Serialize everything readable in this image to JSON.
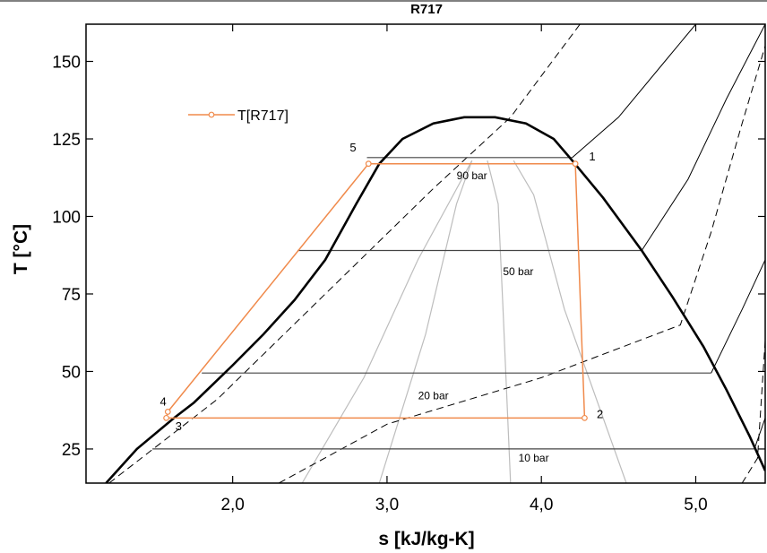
{
  "chart_data": {
    "type": "line",
    "title": "R717",
    "xlabel": "s [kJ/kg-K]",
    "ylabel": "T [°C]",
    "xlim": [
      1.05,
      5.45
    ],
    "ylim": [
      14,
      162
    ],
    "x_ticks": [
      2.0,
      3.0,
      4.0,
      5.0
    ],
    "x_tick_labels": [
      "2,0",
      "3,0",
      "4,0",
      "5,0"
    ],
    "y_ticks": [
      25,
      50,
      75,
      100,
      125,
      150
    ],
    "y_tick_labels": [
      "25",
      "50",
      "75",
      "100",
      "125",
      "150"
    ],
    "legend": {
      "position": "upper-left",
      "entries": [
        "T[R717]"
      ]
    },
    "colors": {
      "cycle": "#f08a4b",
      "isobar": "#000000",
      "quality": "#bdbdbd",
      "dome": "#000000"
    },
    "saturation_dome": [
      [
        1.18,
        14
      ],
      [
        1.38,
        25
      ],
      [
        1.62,
        35
      ],
      [
        1.75,
        40
      ],
      [
        2.0,
        52
      ],
      [
        2.2,
        62
      ],
      [
        2.4,
        73
      ],
      [
        2.6,
        86
      ],
      [
        2.8,
        104
      ],
      [
        2.95,
        117
      ],
      [
        3.1,
        125
      ],
      [
        3.3,
        130
      ],
      [
        3.5,
        132
      ],
      [
        3.7,
        132
      ],
      [
        3.9,
        130
      ],
      [
        4.08,
        125
      ],
      [
        4.2,
        118
      ],
      [
        4.4,
        106
      ],
      [
        4.65,
        89
      ],
      [
        4.85,
        74
      ],
      [
        5.05,
        58
      ],
      [
        5.2,
        44
      ],
      [
        5.35,
        29
      ],
      [
        5.45,
        18
      ]
    ],
    "isobars": [
      {
        "label": "10 bar",
        "label_pos": [
          3.95,
          21
        ],
        "points": [
          [
            1.48,
            25
          ],
          [
            5.38,
            25
          ],
          [
            5.45,
            35
          ]
        ]
      },
      {
        "label": "20 bar",
        "label_pos": [
          3.3,
          41
        ],
        "points": [
          [
            1.8,
            49.5
          ],
          [
            5.1,
            49.5
          ],
          [
            5.3,
            70
          ],
          [
            5.45,
            86
          ]
        ]
      },
      {
        "label": "50 bar",
        "label_pos": [
          3.85,
          81
        ],
        "points": [
          [
            2.42,
            89
          ],
          [
            4.65,
            89
          ],
          [
            4.95,
            112
          ],
          [
            5.2,
            138
          ],
          [
            5.45,
            162
          ]
        ]
      },
      {
        "label": "90 bar",
        "label_pos": [
          3.55,
          112
        ],
        "points": [
          [
            2.87,
            119
          ],
          [
            4.2,
            119
          ],
          [
            4.5,
            132
          ],
          [
            4.8,
            150
          ],
          [
            5.0,
            162
          ]
        ]
      }
    ],
    "isochores": [
      [
        [
          1.2,
          14
        ],
        [
          1.9,
          41
        ],
        [
          2.6,
          75
        ],
        [
          3.3,
          109
        ],
        [
          3.8,
          132
        ],
        [
          4.1,
          152
        ],
        [
          4.25,
          162
        ]
      ],
      [
        [
          2.3,
          14
        ],
        [
          3.0,
          33
        ],
        [
          4.0,
          48
        ],
        [
          4.9,
          65
        ],
        [
          5.1,
          95
        ],
        [
          5.3,
          130
        ],
        [
          5.45,
          155
        ]
      ],
      [
        [
          5.3,
          14
        ],
        [
          5.4,
          22
        ],
        [
          5.45,
          60
        ]
      ]
    ],
    "quality_lines": [
      [
        [
          2.45,
          14
        ],
        [
          2.85,
          48
        ],
        [
          3.2,
          86
        ],
        [
          3.55,
          118
        ]
      ],
      [
        [
          2.95,
          14
        ],
        [
          3.25,
          62
        ],
        [
          3.45,
          104
        ],
        [
          3.55,
          118
        ]
      ],
      [
        [
          3.8,
          14
        ],
        [
          3.75,
          72
        ],
        [
          3.72,
          104
        ],
        [
          3.65,
          118
        ]
      ],
      [
        [
          4.55,
          14
        ],
        [
          4.15,
          70
        ],
        [
          3.95,
          107
        ],
        [
          3.82,
          118
        ]
      ]
    ],
    "series": [
      {
        "name": "T[R717]",
        "points": [
          [
            4.22,
            117
          ],
          [
            4.28,
            35
          ],
          [
            1.57,
            35
          ],
          [
            1.58,
            37
          ],
          [
            2.88,
            117
          ],
          [
            4.22,
            117
          ]
        ],
        "point_labels": [
          {
            "text": "1",
            "at": [
              4.33,
              118
            ]
          },
          {
            "text": "2",
            "at": [
              4.38,
              35
            ]
          },
          {
            "text": "3",
            "at": [
              1.65,
              31
            ]
          },
          {
            "text": "4",
            "at": [
              1.55,
              39
            ]
          },
          {
            "text": "5",
            "at": [
              2.78,
              121
            ]
          }
        ]
      }
    ]
  }
}
